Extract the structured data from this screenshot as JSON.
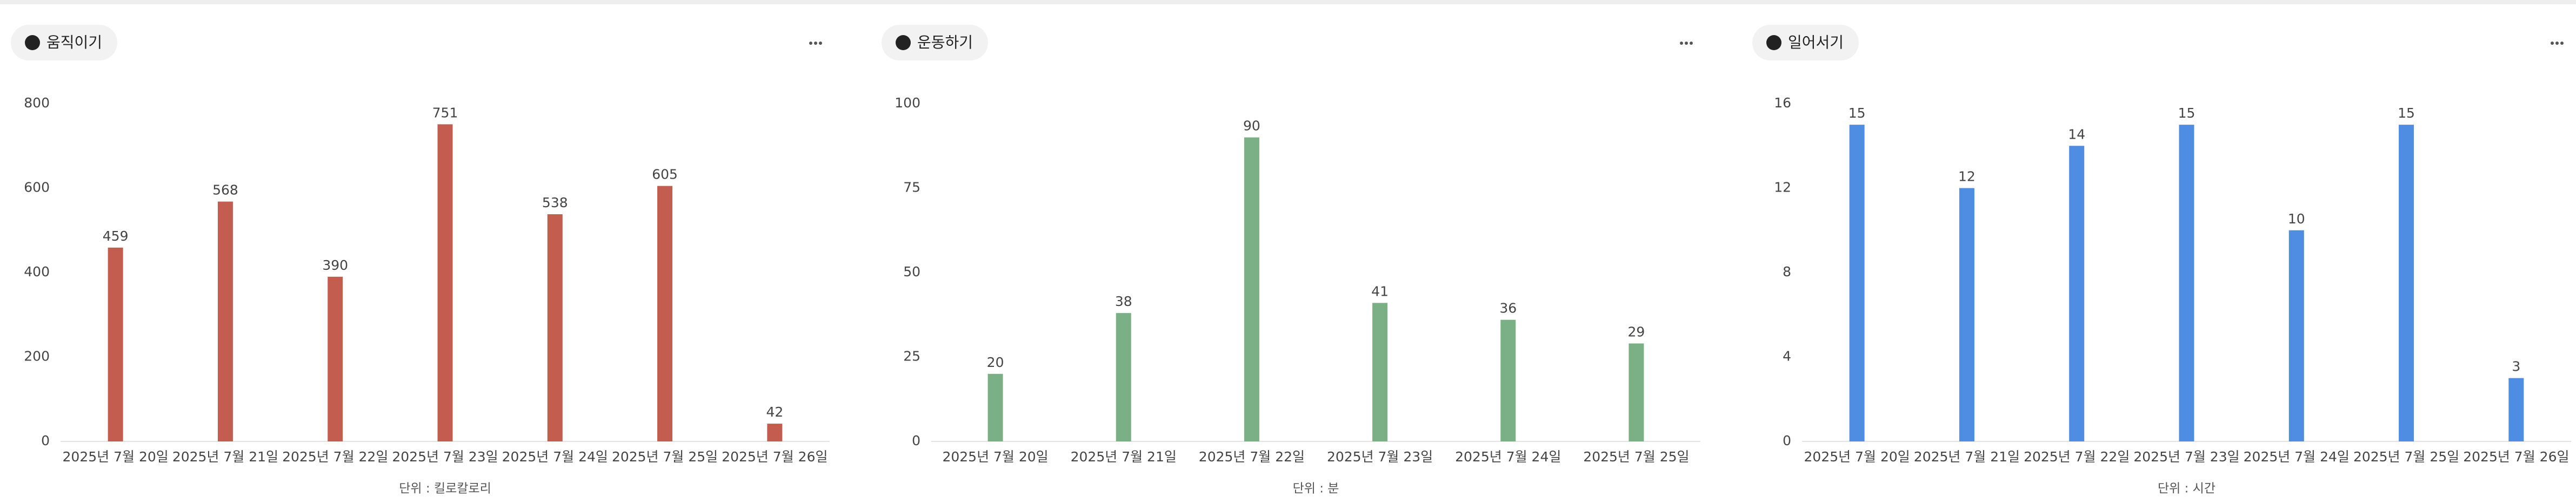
{
  "chart_data": [
    {
      "type": "bar",
      "title": "움직이기",
      "x_label": "단위 : 킬로칼로리",
      "categories": [
        "2025년 7월 20일",
        "2025년 7월 21일",
        "2025년 7월 22일",
        "2025년 7월 23일",
        "2025년 7월 24일",
        "2025년 7월 25일",
        "2025년 7월 26일"
      ],
      "values": [
        459,
        568,
        390,
        751,
        538,
        605,
        42
      ],
      "color": "#c25d50",
      "ylim": [
        0,
        800
      ],
      "yticks": [
        0,
        200,
        400,
        600,
        800
      ]
    },
    {
      "type": "bar",
      "title": "운동하기",
      "x_label": "단위 : 분",
      "categories": [
        "2025년 7월 20일",
        "2025년 7월 21일",
        "2025년 7월 22일",
        "2025년 7월 23일",
        "2025년 7월 24일",
        "2025년 7월 25일"
      ],
      "values": [
        20,
        38,
        90,
        41,
        36,
        29
      ],
      "color": "#7bb087",
      "ylim": [
        0,
        100
      ],
      "yticks": [
        0,
        25,
        50,
        75,
        100
      ]
    },
    {
      "type": "bar",
      "title": "일어서기",
      "x_label": "단위 : 시간",
      "categories": [
        "2025년 7월 20일",
        "2025년 7월 21일",
        "2025년 7월 22일",
        "2025년 7월 23일",
        "2025년 7월 24일",
        "2025년 7월 25일",
        "2025년 7월 26일"
      ],
      "values": [
        15,
        12,
        14,
        15,
        10,
        15,
        3
      ],
      "color": "#4f8de3",
      "ylim": [
        0,
        16
      ],
      "yticks": [
        0,
        4,
        8,
        12,
        16
      ]
    }
  ]
}
